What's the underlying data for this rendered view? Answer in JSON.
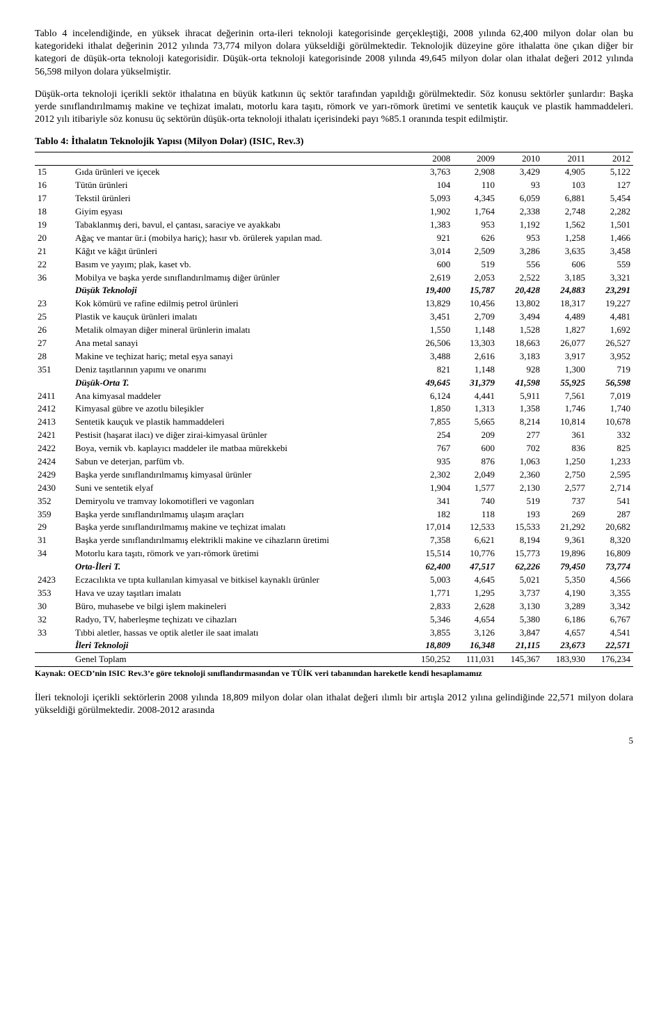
{
  "para1": "Tablo 4 incelendiğinde, en yüksek ihracat değerinin orta-ileri teknoloji kategorisinde gerçekleştiği, 2008 yılında 62,400 milyon dolar olan bu kategorideki ithalat değerinin 2012 yılında 73,774 milyon dolara yükseldiği görülmektedir. Teknolojik düzeyine göre ithalatta öne çıkan diğer bir kategori de düşük-orta teknoloji kategorisidir. Düşük-orta teknoloji kategorisinde 2008 yılında 49,645 milyon dolar olan ithalat değeri 2012 yılında 56,598 milyon dolara yükselmiştir.",
  "para2": "Düşük-orta teknoloji içerikli sektör ithalatına en büyük katkının üç sektör tarafından yapıldığı görülmektedir. Söz konusu sektörler şunlardır: Başka yerde sınıflandırılmamış makine ve teçhizat imalatı, motorlu kara taşıtı, römork ve yarı-römork üretimi ve sentetik kauçuk ve plastik hammaddeleri. 2012 yılı itibariyle söz konusu üç sektörün düşük-orta teknoloji ithalatı içerisindeki payı %85.1 oranında tespit edilmiştir.",
  "tableTitle": "Tablo 4: İthalatın Teknolojik Yapısı (Milyon Dolar) (ISIC, Rev.3)",
  "years": [
    "2008",
    "2009",
    "2010",
    "2011",
    "2012"
  ],
  "rows": [
    {
      "code": "15",
      "label": "Gıda ürünleri ve içecek",
      "v": [
        "3,763",
        "2,908",
        "3,429",
        "4,905",
        "5,122"
      ]
    },
    {
      "code": "16",
      "label": "Tütün ürünleri",
      "v": [
        "104",
        "110",
        "93",
        "103",
        "127"
      ]
    },
    {
      "code": "17",
      "label": "Tekstil ürünleri",
      "v": [
        "5,093",
        "4,345",
        "6,059",
        "6,881",
        "5,454"
      ]
    },
    {
      "code": "18",
      "label": "Giyim eşyası",
      "v": [
        "1,902",
        "1,764",
        "2,338",
        "2,748",
        "2,282"
      ]
    },
    {
      "code": "19",
      "label": "Tabaklanmış deri, bavul, el çantası, saraciye ve ayakkabı",
      "v": [
        "1,383",
        "953",
        "1,192",
        "1,562",
        "1,501"
      ]
    },
    {
      "code": "20",
      "label": "Ağaç ve mantar ür.i (mobilya hariç); hasır vb. örülerek yapılan mad.",
      "v": [
        "921",
        "626",
        "953",
        "1,258",
        "1,466"
      ]
    },
    {
      "code": "21",
      "label": "Kâğıt ve kâğıt ürünleri",
      "v": [
        "3,014",
        "2,509",
        "3,286",
        "3,635",
        "3,458"
      ]
    },
    {
      "code": "22",
      "label": "Basım ve yayım; plak, kaset vb.",
      "v": [
        "600",
        "519",
        "556",
        "606",
        "559"
      ]
    },
    {
      "code": "36",
      "label": "Mobilya ve başka yerde sınıflandırılmamış diğer ürünler",
      "v": [
        "2,619",
        "2,053",
        "2,522",
        "3,185",
        "3,321"
      ]
    },
    {
      "section": true,
      "label": "Düşük Teknoloji",
      "v": [
        "19,400",
        "15,787",
        "20,428",
        "24,883",
        "23,291"
      ]
    },
    {
      "code": "23",
      "label": "Kok kömürü ve rafine edilmiş petrol ürünleri",
      "v": [
        "13,829",
        "10,456",
        "13,802",
        "18,317",
        "19,227"
      ]
    },
    {
      "code": "25",
      "label": "Plastik ve kauçuk ürünleri imalatı",
      "v": [
        "3,451",
        "2,709",
        "3,494",
        "4,489",
        "4,481"
      ]
    },
    {
      "code": "26",
      "label": "Metalik olmayan diğer mineral ürünlerin imalatı",
      "v": [
        "1,550",
        "1,148",
        "1,528",
        "1,827",
        "1,692"
      ]
    },
    {
      "code": "27",
      "label": "Ana metal sanayi",
      "v": [
        "26,506",
        "13,303",
        "18,663",
        "26,077",
        "26,527"
      ]
    },
    {
      "code": "28",
      "label": "Makine ve teçhizat hariç; metal eşya sanayi",
      "v": [
        "3,488",
        "2,616",
        "3,183",
        "3,917",
        "3,952"
      ]
    },
    {
      "code": "351",
      "label": "Deniz taşıtlarının yapımı ve onarımı",
      "v": [
        "821",
        "1,148",
        "928",
        "1,300",
        "719"
      ]
    },
    {
      "section": true,
      "label": "Düşük-Orta T.",
      "v": [
        "49,645",
        "31,379",
        "41,598",
        "55,925",
        "56,598"
      ]
    },
    {
      "code": "2411",
      "label": "Ana kimyasal maddeler",
      "v": [
        "6,124",
        "4,441",
        "5,911",
        "7,561",
        "7,019"
      ]
    },
    {
      "code": "2412",
      "label": "Kimyasal gübre ve azotlu bileşikler",
      "v": [
        "1,850",
        "1,313",
        "1,358",
        "1,746",
        "1,740"
      ]
    },
    {
      "code": "2413",
      "label": "Sentetik kauçuk ve plastik hammaddeleri",
      "v": [
        "7,855",
        "5,665",
        "8,214",
        "10,814",
        "10,678"
      ]
    },
    {
      "code": "2421",
      "label": "Pestisit (haşarat ilacı) ve diğer zirai-kimyasal ürünler",
      "v": [
        "254",
        "209",
        "277",
        "361",
        "332"
      ]
    },
    {
      "code": "2422",
      "label": "Boya, vernik vb. kaplayıcı maddeler ile matbaa mürekkebi",
      "v": [
        "767",
        "600",
        "702",
        "836",
        "825"
      ]
    },
    {
      "code": "2424",
      "label": "Sabun ve deterjan, parfüm vb.",
      "v": [
        "935",
        "876",
        "1,063",
        "1,250",
        "1,233"
      ]
    },
    {
      "code": "2429",
      "label": "Başka yerde sınıflandırılmamış kimyasal ürünler",
      "v": [
        "2,302",
        "2,049",
        "2,360",
        "2,750",
        "2,595"
      ]
    },
    {
      "code": "2430",
      "label": "Suni ve sentetik elyaf",
      "v": [
        "1,904",
        "1,577",
        "2,130",
        "2,577",
        "2,714"
      ]
    },
    {
      "code": "352",
      "label": "Demiryolu ve tramvay lokomotifleri ve vagonları",
      "v": [
        "341",
        "740",
        "519",
        "737",
        "541"
      ]
    },
    {
      "code": "359",
      "label": "Başka yerde sınıflandırılmamış ulaşım araçları",
      "v": [
        "182",
        "118",
        "193",
        "269",
        "287"
      ]
    },
    {
      "code": "29",
      "label": "Başka yerde sınıflandırılmamış makine ve teçhizat imalatı",
      "v": [
        "17,014",
        "12,533",
        "15,533",
        "21,292",
        "20,682"
      ]
    },
    {
      "code": "31",
      "label": "Başka yerde sınıflandırılmamış elektrikli makine ve cihazların üretimi",
      "v": [
        "7,358",
        "6,621",
        "8,194",
        "9,361",
        "8,320"
      ]
    },
    {
      "code": "34",
      "label": "Motorlu kara taşıtı, römork ve yarı-römork üretimi",
      "v": [
        "15,514",
        "10,776",
        "15,773",
        "19,896",
        "16,809"
      ]
    },
    {
      "section": true,
      "label": "Orta-İleri T.",
      "v": [
        "62,400",
        "47,517",
        "62,226",
        "79,450",
        "73,774"
      ]
    },
    {
      "code": "2423",
      "label": "Eczacılıkta ve tıpta kullanılan kimyasal ve bitkisel kaynaklı ürünler",
      "v": [
        "5,003",
        "4,645",
        "5,021",
        "5,350",
        "4,566"
      ]
    },
    {
      "code": "353",
      "label": "Hava ve uzay taşıtları imalatı",
      "v": [
        "1,771",
        "1,295",
        "3,737",
        "4,190",
        "3,355"
      ]
    },
    {
      "code": "30",
      "label": "Büro, muhasebe ve bilgi işlem makineleri",
      "v": [
        "2,833",
        "2,628",
        "3,130",
        "3,289",
        "3,342"
      ]
    },
    {
      "code": "32",
      "label": "Radyo, TV, haberleşme teçhizatı ve cihazları",
      "v": [
        "5,346",
        "4,654",
        "5,380",
        "6,186",
        "6,767"
      ]
    },
    {
      "code": "33",
      "label": "Tıbbi aletler, hassas ve optik aletler ile saat imalatı",
      "v": [
        "3,855",
        "3,126",
        "3,847",
        "4,657",
        "4,541"
      ]
    },
    {
      "section": true,
      "label": "İleri Teknoloji",
      "v": [
        "18,809",
        "16,348",
        "21,115",
        "23,673",
        "22,571"
      ]
    },
    {
      "total": true,
      "label": "Genel Toplam",
      "v": [
        "150,252",
        "111,031",
        "145,367",
        "183,930",
        "176,234"
      ]
    }
  ],
  "source": "Kaynak: OECD’nin ISIC Rev.3’e göre teknoloji sınıflandırmasından ve TÜİK veri tabanından hareketle kendi hesaplamamız",
  "para3": "İleri teknoloji içerikli sektörlerin 2008 yılında 18,809 milyon dolar olan ithalat değeri ılımlı bir artışla 2012 yılına gelindiğinde 22,571 milyon dolara yükseldiği görülmektedir. 2008-2012 arasında",
  "pageNumber": "5"
}
